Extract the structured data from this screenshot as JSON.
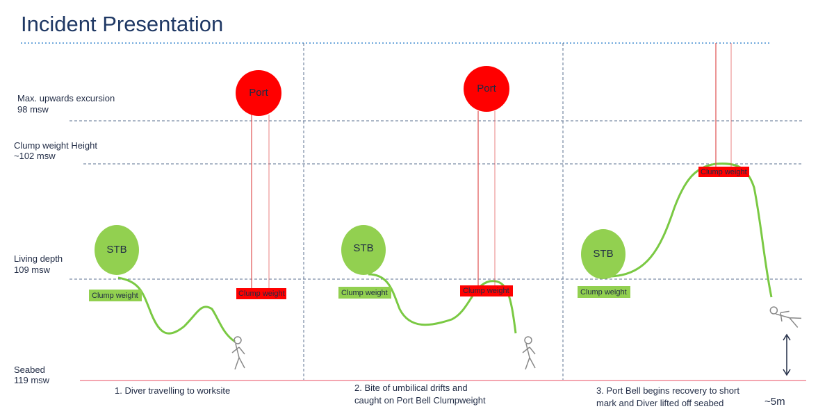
{
  "title": "Incident Presentation",
  "depth_levels": [
    {
      "label": "Max. upwards excursion",
      "depth": "98 msw"
    },
    {
      "label": "Clump weight Height",
      "depth": "~102 msw"
    },
    {
      "label": "Living depth",
      "depth": "109 msw"
    },
    {
      "label": "Seabed",
      "depth": "119 msw"
    }
  ],
  "panels": [
    {
      "stb": "STB",
      "port": "Port",
      "stb_clump": "Clump weight",
      "port_clump": "Clump weight",
      "caption": [
        "1. Diver travelling to worksite"
      ]
    },
    {
      "stb": "STB",
      "port": "Port",
      "stb_clump": "Clump weight",
      "port_clump": "Clump weight",
      "caption": [
        "2. Bite of umbilical drifts and",
        "caught on Port Bell Clumpweight"
      ]
    },
    {
      "stb": "STB",
      "stb_clump": "Clump weight",
      "port_clump": "Clump weight",
      "caption": [
        "3. Port Bell begins recovery to short",
        "mark and Diver lifted off seabed"
      ]
    }
  ],
  "distance_label": "~5m"
}
